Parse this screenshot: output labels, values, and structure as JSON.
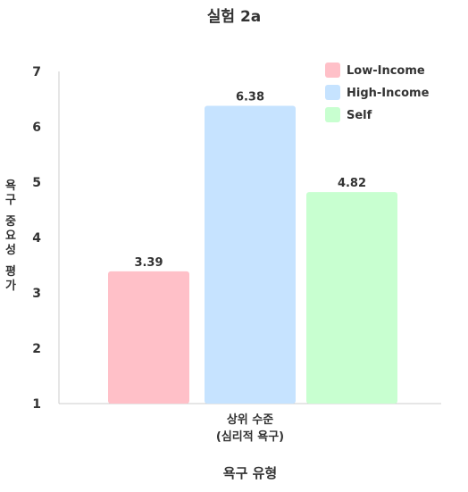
{
  "chart_data": {
    "type": "bar",
    "title": "실험 2a",
    "categories": [
      "상위 수준\n(심리적 욕구)"
    ],
    "series": [
      {
        "name": "Low-Income",
        "values": [
          3.39
        ],
        "color": "#ffc0c8"
      },
      {
        "name": "High-Income",
        "values": [
          6.38
        ],
        "color": "#c6e3ff"
      },
      {
        "name": "Self",
        "values": [
          4.82
        ],
        "color": "#c8ffd0"
      }
    ],
    "value_labels": [
      "3.39",
      "6.38",
      "4.82"
    ],
    "xlabel": "욕구 유형",
    "ylabel": "욕구 중요성 평가",
    "ylim": [
      1,
      7
    ],
    "yticks": [
      "1",
      "2",
      "3",
      "4",
      "5",
      "6",
      "7"
    ],
    "grid": false,
    "legend_position": "top-right"
  }
}
